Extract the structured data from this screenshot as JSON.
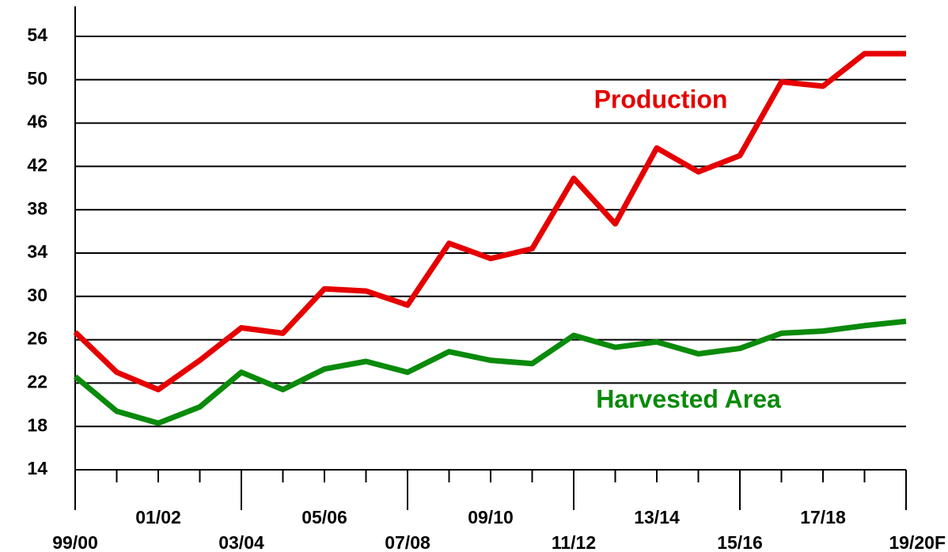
{
  "chart_data": {
    "type": "line",
    "categories": [
      "99/00",
      null,
      "01/02",
      null,
      "03/04",
      null,
      "05/06",
      null,
      "07/08",
      null,
      "09/10",
      null,
      "11/12",
      null,
      "13/14",
      null,
      "15/16",
      null,
      "17/18",
      null,
      "19/20F"
    ],
    "series": [
      {
        "name": "Production",
        "color": "#e60000",
        "values": [
          26.7,
          23.0,
          21.4,
          24.1,
          27.1,
          26.6,
          30.7,
          30.5,
          29.2,
          34.9,
          33.5,
          34.4,
          40.9,
          36.7,
          43.7,
          41.5,
          43.0,
          49.8,
          49.4,
          52.4,
          52.4
        ]
      },
      {
        "name": "Harvested Area",
        "color": "#0a8a0a",
        "values": [
          22.6,
          19.4,
          18.3,
          19.8,
          23.0,
          21.4,
          23.3,
          24.0,
          23.0,
          24.9,
          24.1,
          23.8,
          26.4,
          25.3,
          25.8,
          24.7,
          25.2,
          26.6,
          26.8,
          27.3,
          27.7
        ]
      }
    ],
    "ylim": [
      14,
      54
    ],
    "yticks": [
      14,
      18,
      22,
      26,
      30,
      34,
      38,
      42,
      46,
      50,
      54
    ],
    "grid": true
  }
}
